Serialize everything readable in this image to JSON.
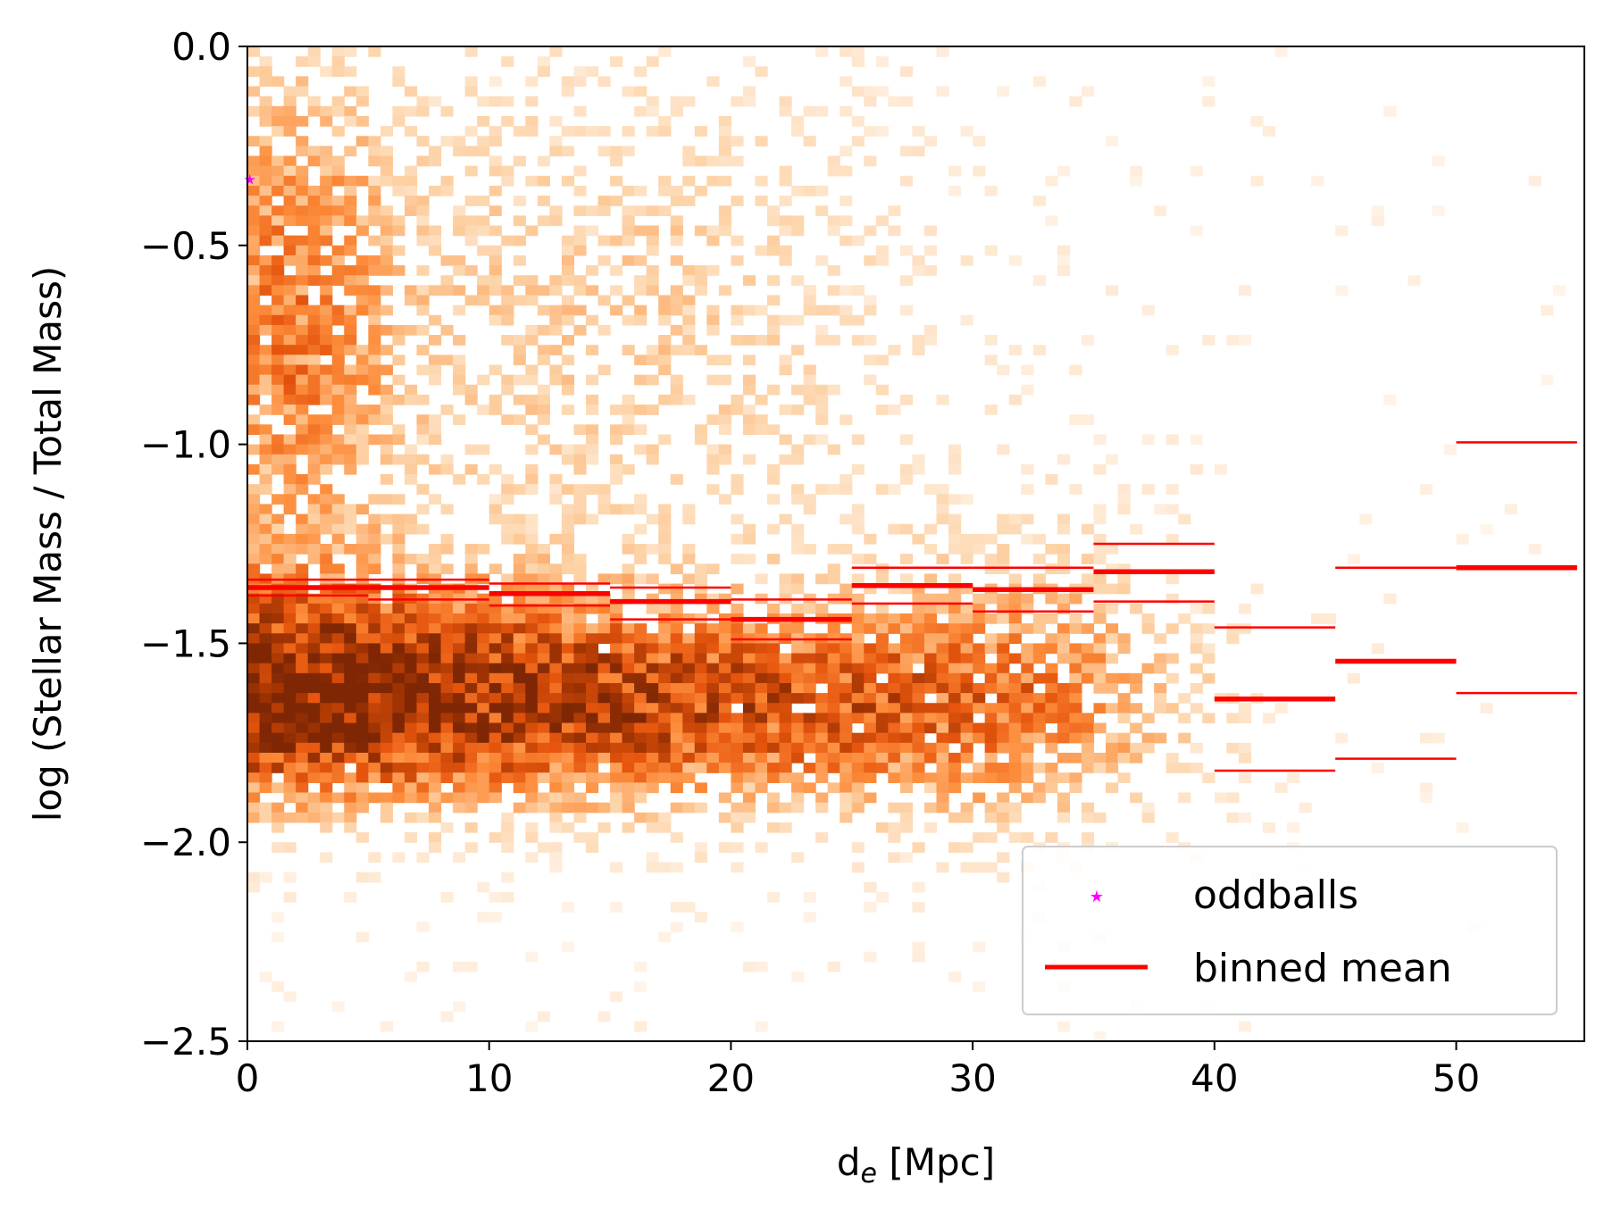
{
  "chart_data": {
    "type": "heatmap",
    "xlabel_main": "d",
    "xlabel_sub": "e",
    "xlabel_unit": " [Mpc]",
    "ylabel": "log (Stellar Mass / Total Mass)",
    "xlim": [
      0,
      55.3
    ],
    "ylim": [
      -2.5,
      0.0
    ],
    "x_ticks": [
      0,
      10,
      20,
      30,
      40,
      50
    ],
    "x_tick_labels": [
      "0",
      "10",
      "20",
      "30",
      "40",
      "50"
    ],
    "y_ticks": [
      0.0,
      -0.5,
      -1.0,
      -1.5,
      -2.0,
      -2.5
    ],
    "y_tick_labels": [
      "0.0",
      "−0.5",
      "−1.0",
      "−1.5",
      "−2.0",
      "−2.5"
    ],
    "grid": false,
    "colormap": "Oranges",
    "colormap_stops": [
      "#fff5eb",
      "#fdd0a2",
      "#fd8d3c",
      "#e6550d",
      "#a63603",
      "#7f2704"
    ],
    "hist_bins": {
      "nx": 110,
      "ny": 100,
      "x_step": 0.5,
      "y_step": 0.025
    },
    "density_clusters": [
      {
        "x_center": 0.5,
        "y_center": -1.62,
        "sx": 9.0,
        "sy": 0.17,
        "weight": 1.0
      },
      {
        "x_center": 20.0,
        "y_center": -1.66,
        "sx": 9.0,
        "sy": 0.16,
        "weight": 0.55
      },
      {
        "x_center": 1.5,
        "y_center": -0.7,
        "sx": 3.0,
        "sy": 0.45,
        "weight": 0.35
      },
      {
        "x_center": 14.0,
        "y_center": -0.7,
        "sx": 10.0,
        "sy": 0.5,
        "weight": 0.18
      },
      {
        "x_center": 32.0,
        "y_center": -1.6,
        "sx": 5.0,
        "sy": 0.25,
        "weight": 0.25
      }
    ],
    "binned_mean": {
      "color": "#ff0000",
      "bins": [
        {
          "x0": 0,
          "x1": 5,
          "mean": -1.36,
          "upper": -1.34,
          "lower": -1.38
        },
        {
          "x0": 5,
          "x1": 10,
          "mean": -1.36,
          "upper": -1.34,
          "lower": -1.39
        },
        {
          "x0": 10,
          "x1": 15,
          "mean": -1.375,
          "upper": -1.35,
          "lower": -1.405
        },
        {
          "x0": 15,
          "x1": 20,
          "mean": -1.395,
          "upper": -1.36,
          "lower": -1.44
        },
        {
          "x0": 20,
          "x1": 25,
          "mean": -1.44,
          "upper": -1.39,
          "lower": -1.49
        },
        {
          "x0": 25,
          "x1": 30,
          "mean": -1.355,
          "upper": -1.31,
          "lower": -1.4
        },
        {
          "x0": 30,
          "x1": 35,
          "mean": -1.365,
          "upper": -1.31,
          "lower": -1.42
        },
        {
          "x0": 35,
          "x1": 40,
          "mean": -1.32,
          "upper": -1.25,
          "lower": -1.395
        },
        {
          "x0": 40,
          "x1": 45,
          "mean": -1.64,
          "upper": -1.46,
          "lower": -1.82
        },
        {
          "x0": 45,
          "x1": 50,
          "mean": -1.545,
          "upper": -1.31,
          "lower": -1.79
        },
        {
          "x0": 50,
          "x1": 55,
          "mean": -1.31,
          "upper": -0.995,
          "lower": -1.625
        }
      ]
    },
    "oddballs": {
      "color": "#ff00ff",
      "points": [
        {
          "x": 0.1,
          "y": -0.335
        }
      ]
    },
    "legend": {
      "placement": "lower-right",
      "entries": [
        {
          "label": "oddballs",
          "kind": "star",
          "color": "#ff00ff"
        },
        {
          "label": "binned mean",
          "kind": "line",
          "color": "#ff0000"
        }
      ]
    }
  }
}
